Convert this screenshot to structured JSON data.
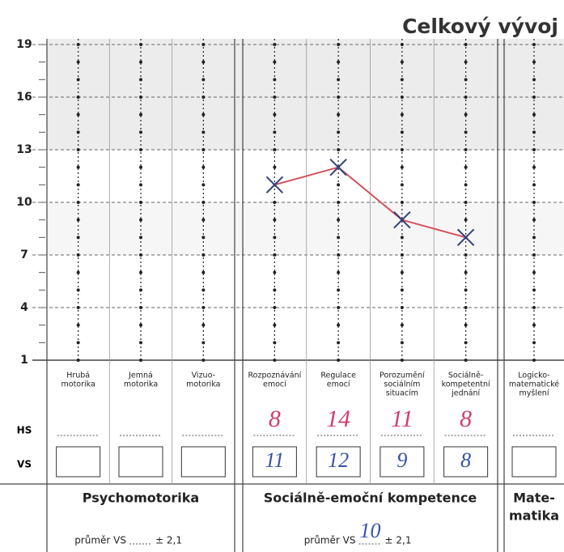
{
  "title": "Celkový vývoj",
  "scale": {
    "ylim": [
      1,
      19
    ],
    "yticks": [
      19,
      16,
      13,
      10,
      7,
      4,
      1
    ]
  },
  "row_labels": {
    "hs": "HS",
    "vs": "VS"
  },
  "groups": [
    {
      "name": [
        "Psychomotorika"
      ],
      "average_label": "průměr VS",
      "sd_label": "± 2,1",
      "subscales": [
        {
          "label": [
            "Hrubá",
            "motorika"
          ]
        },
        {
          "label": [
            "Jemná",
            "motorika"
          ]
        },
        {
          "label": [
            "Vizuo-",
            "motorika"
          ]
        }
      ]
    },
    {
      "name": [
        "Sociálně-emoční kompetence"
      ],
      "average_label": "průměr VS",
      "average": 10,
      "sd_label": "± 2,1",
      "subscales": [
        {
          "label": [
            "Rozpoznávání",
            "emocí"
          ],
          "hs": 8,
          "vs": 11
        },
        {
          "label": [
            "Regulace",
            "emocí"
          ],
          "hs": 14,
          "vs": 12
        },
        {
          "label": [
            "Porozumění",
            "sociálním",
            "situacím"
          ],
          "hs": 11,
          "vs": 9
        },
        {
          "label": [
            "Sociálně-",
            "kompetentní",
            "jednání"
          ],
          "hs": 8,
          "vs": 8
        }
      ]
    },
    {
      "name": [
        "Mate-",
        "matika"
      ],
      "subscales": [
        {
          "label": [
            "Logicko-",
            "matematické",
            "myšlení"
          ]
        }
      ]
    }
  ]
}
